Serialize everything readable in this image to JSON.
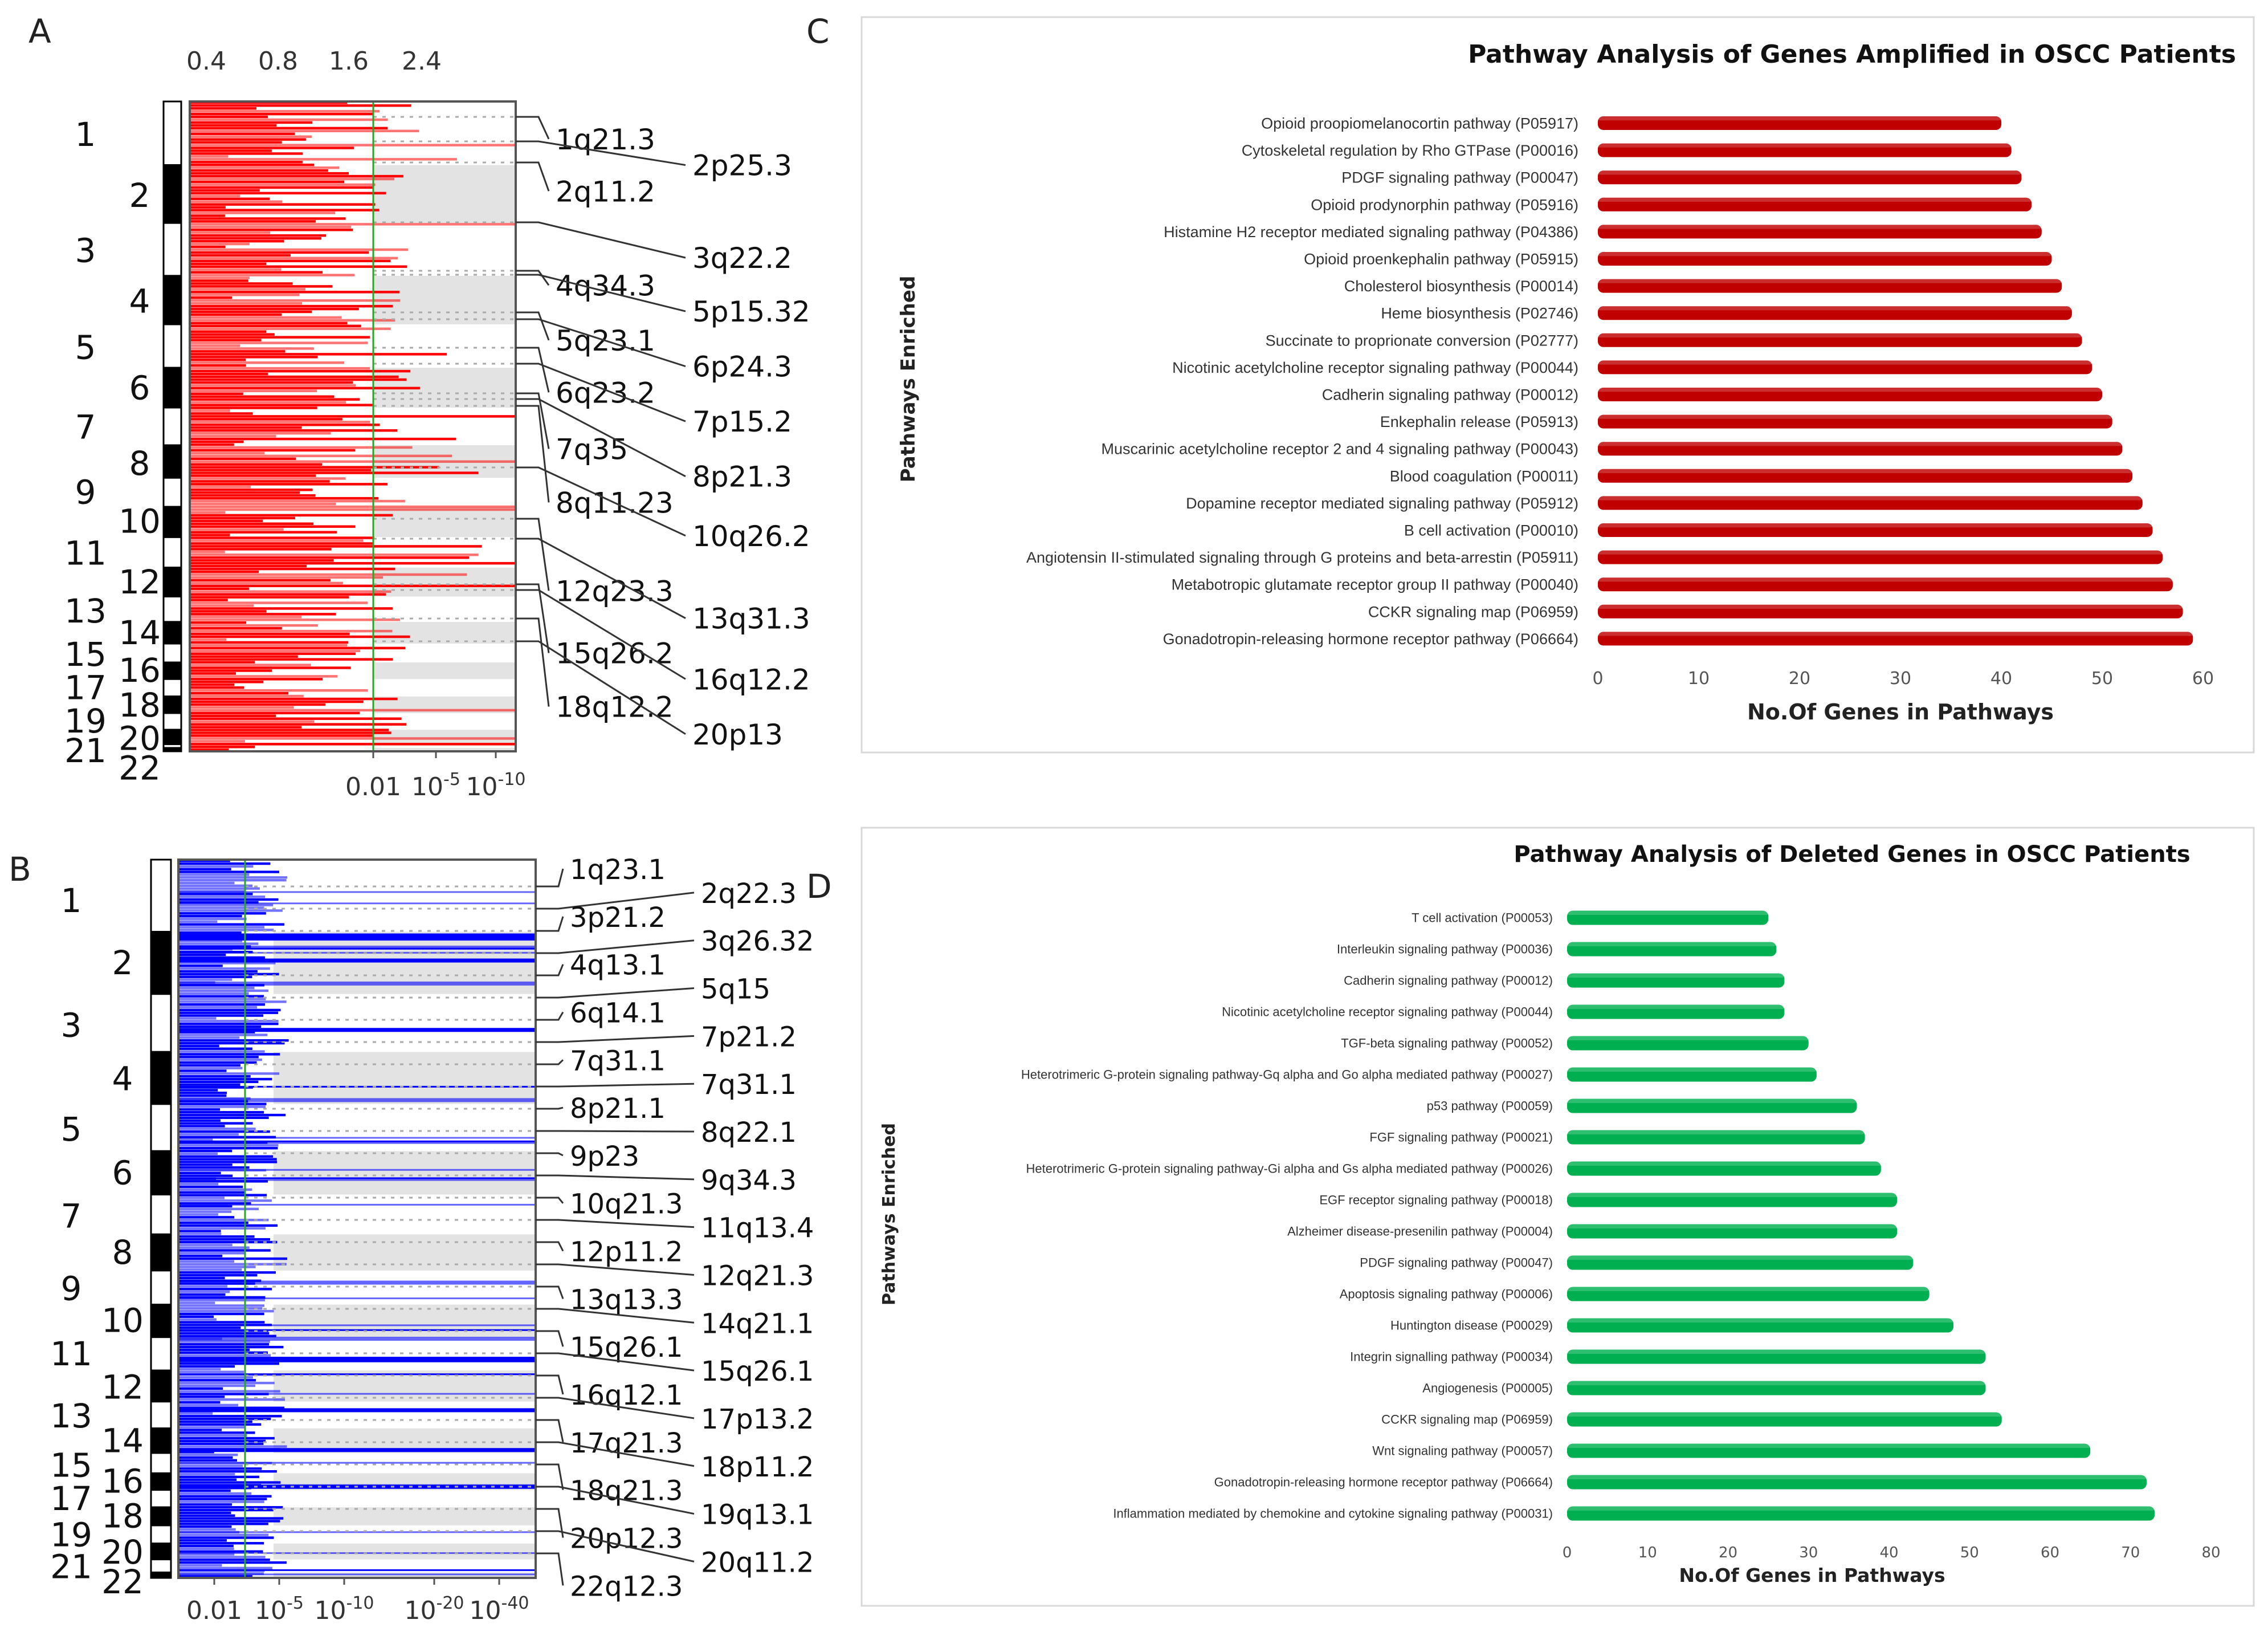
{
  "colors": {
    "amp": "#ff0000",
    "del": "#0000ff",
    "sig_line": "#22aa22",
    "barC": "#c00000",
    "barD": "#00b050"
  },
  "chart_data": [
    {
      "panel": "A",
      "type": "bar",
      "orientation": "horizontal-genome",
      "top_ticks": [
        "0.4",
        "0.8",
        "1.6",
        "2.4"
      ],
      "bottom_ticks": [
        "0.01",
        "10-5",
        "10-10"
      ],
      "chromosomes": [
        "1",
        "2",
        "3",
        "4",
        "5",
        "6",
        "7",
        "8",
        "9",
        "10",
        "11",
        "12",
        "13",
        "14",
        "15",
        "16",
        "17",
        "18",
        "19",
        "20",
        "21",
        "22"
      ],
      "band_labels": [
        "1q21.3",
        "2p25.3",
        "2q11.2",
        "3q22.2",
        "4q34.3",
        "5p15.32",
        "5q23.1",
        "6p24.3",
        "6q23.2",
        "7p15.2",
        "7q35",
        "8p21.3",
        "8q11.23",
        "10q26.2",
        "12q23.3",
        "13q31.3",
        "15q26.2",
        "16q12.2",
        "18q12.2",
        "20p13"
      ]
    },
    {
      "panel": "B",
      "type": "bar",
      "orientation": "horizontal-genome",
      "bottom_ticks": [
        "0.01",
        "10-5",
        "10-10",
        "10-20",
        "10-40"
      ],
      "chromosomes": [
        "1",
        "2",
        "3",
        "4",
        "5",
        "6",
        "7",
        "8",
        "9",
        "10",
        "11",
        "12",
        "13",
        "14",
        "15",
        "16",
        "17",
        "18",
        "19",
        "20",
        "21",
        "22"
      ],
      "band_labels": [
        "1q23.1",
        "2q22.3",
        "3p21.2",
        "3q26.32",
        "4q13.1",
        "5q15",
        "6q14.1",
        "7p21.2",
        "7q31.1",
        "7q31.1",
        "8p21.1",
        "8q22.1",
        "9p23",
        "9q34.3",
        "10q21.3",
        "11q13.4",
        "12p11.2",
        "12q21.3",
        "13q13.3",
        "14q21.1",
        "15q26.1",
        "15q26.1",
        "16q12.1",
        "17p13.2",
        "17q21.3",
        "18p11.2",
        "18q21.3",
        "19q13.1",
        "20p12.3",
        "20q11.2",
        "22q12.3"
      ]
    },
    {
      "panel": "C",
      "type": "bar",
      "title": "Pathway Analysis of Genes Amplified in OSCC Patients",
      "xlabel": "No.Of Genes in Pathways",
      "ylabel": "Pathways Enriched",
      "xlim": [
        0,
        60
      ],
      "xticks": [
        "0",
        "10",
        "20",
        "30",
        "40",
        "50",
        "60"
      ],
      "categories": [
        "Opioid proopiomelanocortin pathway (P05917)",
        "Cytoskeletal regulation by Rho GTPase (P00016)",
        "PDGF signaling pathway (P00047)",
        "Opioid prodynorphin pathway (P05916)",
        "Histamine H2 receptor mediated signaling pathway (P04386)",
        "Opioid proenkephalin pathway (P05915)",
        "Cholesterol biosynthesis (P00014)",
        "Heme biosynthesis (P02746)",
        "Succinate to proprionate conversion (P02777)",
        "Nicotinic acetylcholine receptor signaling pathway (P00044)",
        "Cadherin signaling pathway (P00012)",
        "Enkephalin release (P05913)",
        "Muscarinic acetylcholine receptor 2 and 4 signaling pathway (P00043)",
        "Blood coagulation (P00011)",
        "Dopamine receptor mediated signaling pathway (P05912)",
        "B cell activation (P00010)",
        "Angiotensin II-stimulated signaling through G proteins and beta-arrestin (P05911)",
        "Metabotropic glutamate receptor group II pathway (P00040)",
        "CCKR signaling map (P06959)",
        "Gonadotropin-releasing hormone receptor pathway (P06664)"
      ],
      "values": [
        40,
        41,
        42,
        43,
        44,
        45,
        46,
        47,
        48,
        49,
        50,
        51,
        52,
        53,
        54,
        55,
        56,
        57,
        58,
        59
      ]
    },
    {
      "panel": "D",
      "type": "bar",
      "title": "Pathway Analysis of Deleted Genes in OSCC Patients",
      "xlabel": "No.Of Genes in Pathways",
      "ylabel": "Pathways Enriched",
      "xlim": [
        0,
        80
      ],
      "xticks": [
        "0",
        "10",
        "20",
        "30",
        "40",
        "50",
        "60",
        "70",
        "80"
      ],
      "categories": [
        "T cell activation (P00053)",
        "Interleukin signaling pathway (P00036)",
        "Cadherin signaling pathway (P00012)",
        "Nicotinic acetylcholine receptor signaling pathway (P00044)",
        "TGF-beta signaling pathway (P00052)",
        "Heterotrimeric G-protein signaling pathway-Gq alpha and Go alpha mediated pathway (P00027)",
        "p53 pathway (P00059)",
        "FGF signaling pathway (P00021)",
        "Heterotrimeric G-protein signaling pathway-Gi alpha and Gs alpha mediated pathway (P00026)",
        "EGF receptor signaling pathway (P00018)",
        "Alzheimer disease-presenilin pathway (P00004)",
        "PDGF signaling pathway (P00047)",
        "Apoptosis signaling pathway (P00006)",
        "Huntington disease (P00029)",
        "Integrin signalling pathway (P00034)",
        "Angiogenesis (P00005)",
        "CCKR signaling map (P06959)",
        "Wnt signaling pathway (P00057)",
        "Gonadotropin-releasing hormone receptor pathway (P06664)",
        "Inflammation mediated by chemokine and cytokine signaling pathway (P00031)"
      ],
      "values": [
        25,
        26,
        27,
        27,
        30,
        31,
        36,
        37,
        39,
        41,
        41,
        43,
        45,
        48,
        52,
        52,
        54,
        65,
        72,
        73
      ]
    }
  ],
  "panel_labels": [
    "A",
    "B",
    "C",
    "D"
  ]
}
